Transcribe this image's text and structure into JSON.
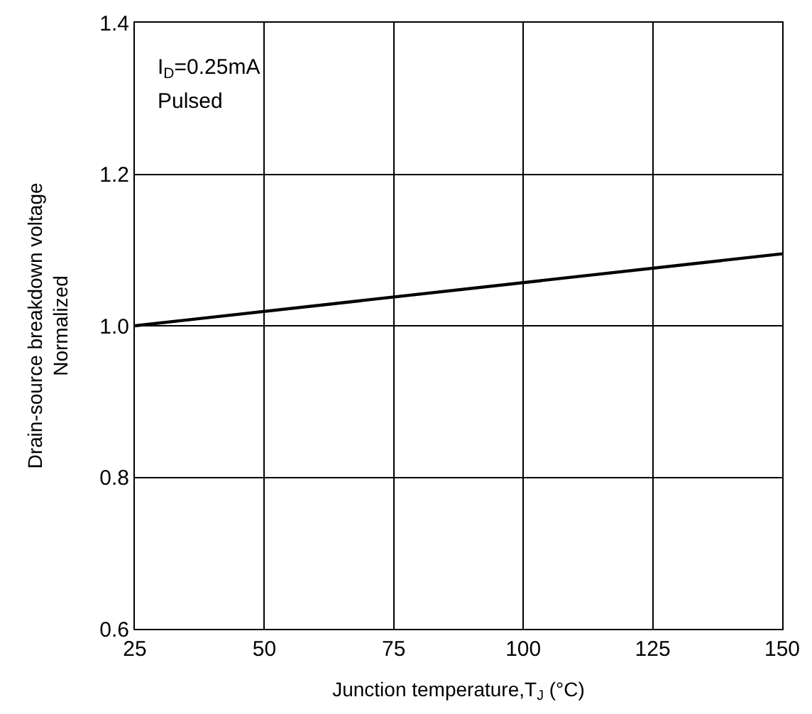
{
  "chart_data": {
    "type": "line",
    "xlabel": "Junction temperature,T$_{J}$ (°C)",
    "ylabel": "Drain-source breakdown voltage\nNormalized",
    "annotations": [
      "I$_{D}$=0.25mA",
      "Pulsed"
    ],
    "x": [
      25,
      150
    ],
    "series": [
      {
        "color": "#000000",
        "values": [
          1.0,
          1.095
        ]
      }
    ],
    "xlim": [
      25,
      150
    ],
    "xticks": [
      25,
      50,
      75,
      100,
      125,
      150
    ],
    "ylim": [
      0.6,
      1.4
    ],
    "yticks": [
      0.6,
      0.8,
      {
        "value": 1,
        "label": "1.0"
      },
      1.2,
      1.4
    ],
    "grid": true,
    "marker": "none",
    "line_style": "solid"
  }
}
